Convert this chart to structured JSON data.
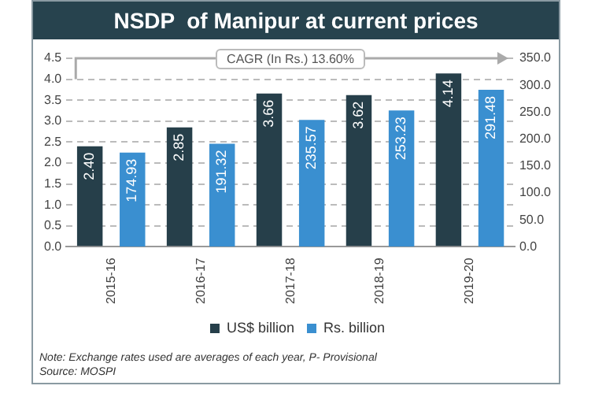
{
  "chart_data": {
    "type": "bar",
    "title": "NSDP  of Manipur at current prices",
    "categories": [
      "2015-16",
      "2016-17",
      "2017-18",
      "2018-19",
      "2019-20"
    ],
    "series": [
      {
        "name": "US$ billion",
        "color": "#263f4a",
        "values": [
          2.4,
          2.85,
          3.66,
          3.62,
          4.14
        ],
        "value_labels": [
          "2.40",
          "2.85",
          "3.66",
          "3.62",
          "4.14"
        ]
      },
      {
        "name": "Rs. billion",
        "color": "#3a8fd0",
        "values": [
          174.93,
          191.32,
          235.57,
          253.23,
          291.48
        ],
        "axis": "y2",
        "value_labels": [
          "174.93",
          "191.32",
          "235.57",
          "253.23",
          "291.48"
        ]
      }
    ],
    "ylim": [
      0,
      4.5
    ],
    "yticks": [
      {
        "value": 0,
        "label": "0.0"
      },
      {
        "value": 0.5,
        "label": "0.5"
      },
      {
        "value": 1,
        "label": "1.0"
      },
      {
        "value": 1.5,
        "label": "1.5"
      },
      {
        "value": 2,
        "label": "2.0"
      },
      {
        "value": 2.5,
        "label": "2.5"
      },
      {
        "value": 3,
        "label": "3.0"
      },
      {
        "value": 3.5,
        "label": "3.5"
      },
      {
        "value": 4,
        "label": "4.0"
      },
      {
        "value": 4.5,
        "label": "4.5"
      }
    ],
    "y2lim": [
      0,
      350
    ],
    "y2ticks": [
      {
        "value": 0,
        "label": "0.0"
      },
      {
        "value": 50,
        "label": "50.0"
      },
      {
        "value": 100,
        "label": "100.0"
      },
      {
        "value": 150,
        "label": "150.0"
      },
      {
        "value": 200,
        "label": "200.0"
      },
      {
        "value": 250,
        "label": "250.0"
      },
      {
        "value": 300,
        "label": "300.0"
      },
      {
        "value": 350,
        "label": "350.0"
      }
    ],
    "grid": "y",
    "legend": "bottom",
    "annotations": [
      "CAGR (In Rs.) 13.60%",
      "Note: Exchange rates used are averages of each year, P- Provisional",
      "Source: MOSPI"
    ]
  }
}
